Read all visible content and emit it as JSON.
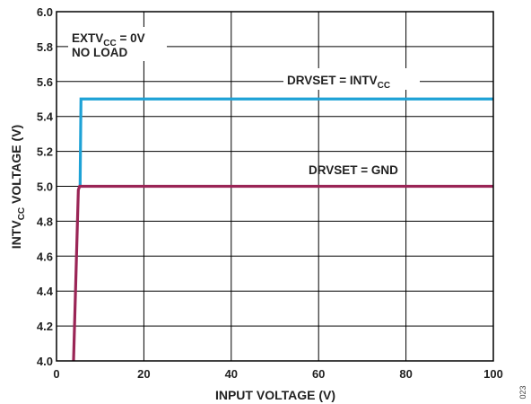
{
  "chart_data": {
    "type": "line",
    "xlabel": "INPUT VOLTAGE (V)",
    "ylabel": {
      "main": "INTV",
      "sub": "CC",
      "rest": " VOLTAGE (V)"
    },
    "xlim": [
      0,
      100
    ],
    "ylim": [
      4.0,
      6.0
    ],
    "x_ticks": [
      0,
      20,
      40,
      60,
      80,
      100
    ],
    "x_tick_labels": [
      "0",
      "20",
      "40",
      "60",
      "80",
      "100"
    ],
    "y_ticks": [
      4.0,
      4.2,
      4.4,
      4.6,
      4.8,
      5.0,
      5.2,
      5.4,
      5.6,
      5.8,
      6.0
    ],
    "y_tick_labels": [
      "4.0",
      "4.2",
      "4.4",
      "4.6",
      "4.8",
      "5.0",
      "5.2",
      "5.4",
      "5.6",
      "5.8",
      "6.0"
    ],
    "grid": true,
    "colors": {
      "intvcc": "#1ea2d6",
      "gnd": "#9a2556",
      "grid": "#000000"
    },
    "series": [
      {
        "label": {
          "main": "DRVSET = INTV",
          "sub": "CC"
        },
        "color": "#1ea2d6",
        "x": [
          5.4,
          5.6,
          100
        ],
        "y": [
          5.0,
          5.5,
          5.5
        ]
      },
      {
        "label": {
          "main": "DRVSET = GND"
        },
        "color": "#9a2556",
        "x": [
          3.9,
          5.0,
          5.3,
          100
        ],
        "y": [
          4.0,
          4.98,
          5.0,
          5.0
        ]
      }
    ],
    "annotation": {
      "line1_main": "EXTV",
      "line1_sub": "CC",
      "line1_rest": " = 0V",
      "line2": "NO LOAD"
    },
    "figure_id": "023"
  }
}
